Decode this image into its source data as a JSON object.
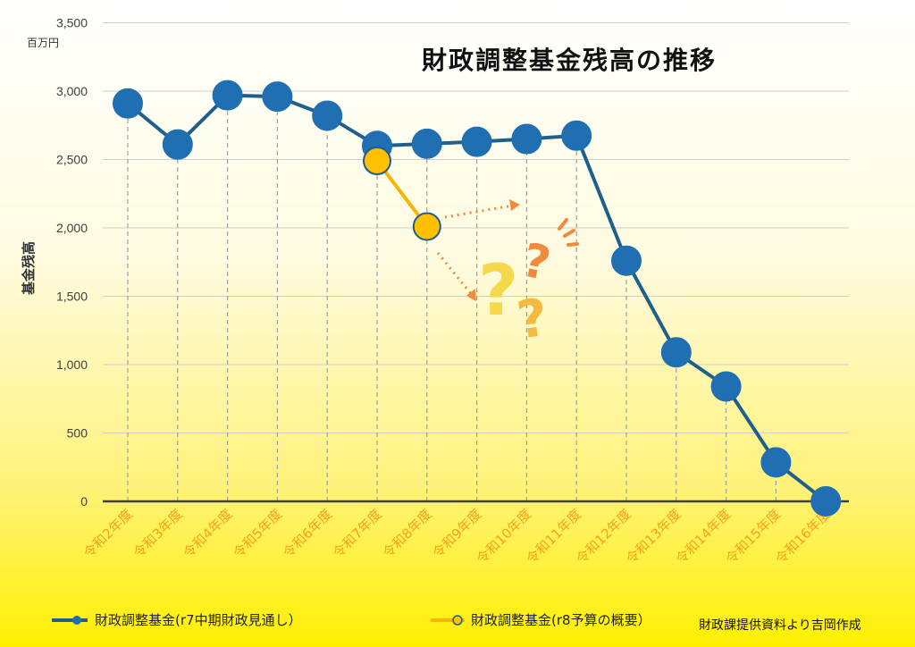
{
  "chart_data": {
    "type": "line",
    "title": "財政調整基金残高の推移",
    "unit_label": "百万円",
    "ylabel": "基金残高",
    "ylim": [
      0,
      3500
    ],
    "yticks": [
      "0",
      "500",
      "1,000",
      "1,500",
      "2,000",
      "2,500",
      "3,000",
      "3,500"
    ],
    "categories": [
      "令和2年度",
      "令和3年度",
      "令和4年度",
      "令和5年度",
      "令和6年度",
      "令和7年度",
      "令和8年度",
      "令和9年度",
      "令和10年度",
      "令和11年度",
      "令和12年度",
      "令和13年度",
      "令和14年度",
      "令和15年度",
      "令和16年度"
    ],
    "grid": true,
    "series": [
      {
        "name": "財政調整基金(r7中期財政見通し）",
        "color": "#1f5f8b",
        "marker": "#1f6fb2",
        "values": [
          2910,
          2610,
          2970,
          2960,
          2820,
          2600,
          2615,
          2630,
          2650,
          2675,
          1760,
          1090,
          840,
          285,
          0
        ]
      },
      {
        "name": "財政調整基金(r8予算の概要）",
        "color": "#f7b500",
        "marker": "#ffc000",
        "values": [
          null,
          null,
          null,
          null,
          null,
          2490,
          2010,
          null,
          null,
          null,
          null,
          null,
          null,
          null,
          null
        ]
      }
    ],
    "legend_position": "bottom",
    "source_note": "財政課提供資料より吉岡作成",
    "annotation_icons": [
      "question-mark-icon",
      "question-mark-icon",
      "question-mark-icon",
      "dotted-arrow-icon"
    ]
  }
}
